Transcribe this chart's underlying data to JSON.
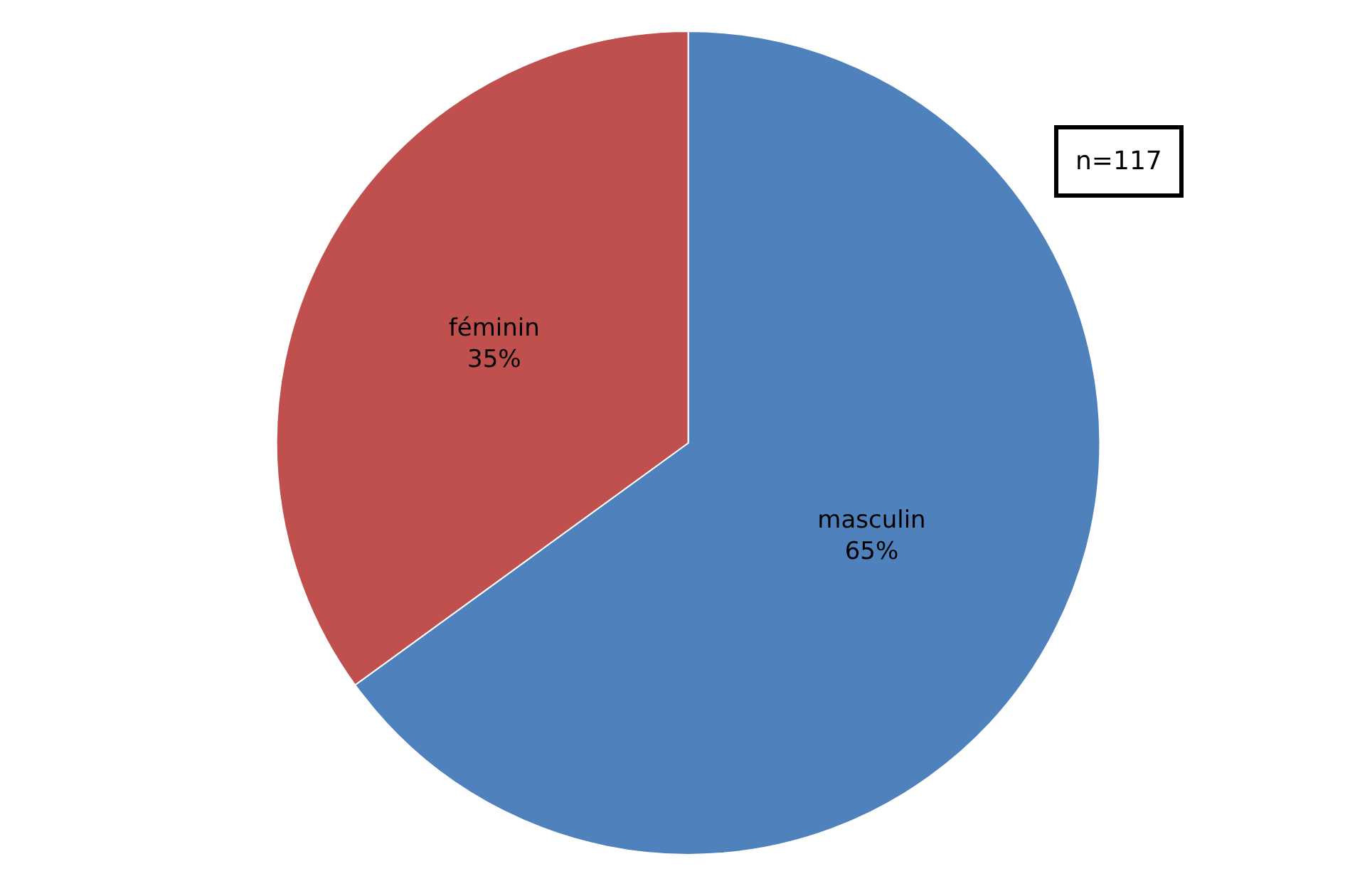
{
  "chart_data": {
    "type": "pie",
    "categories": [
      "masculin",
      "féminin"
    ],
    "values": [
      65,
      35
    ],
    "value_labels": [
      "65%",
      "35%"
    ],
    "colors": [
      "#4f81bd",
      "#c0504d"
    ],
    "annotations": [
      "n=117"
    ],
    "legend": false
  }
}
